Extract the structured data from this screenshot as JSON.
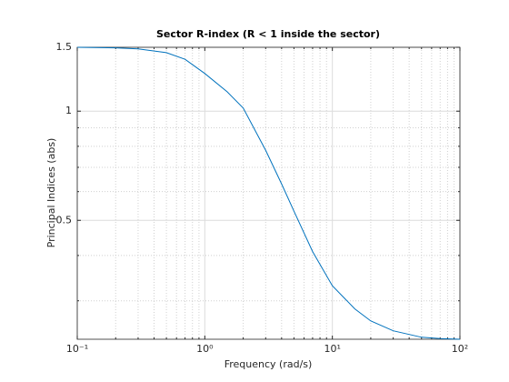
{
  "chart_data": {
    "type": "line",
    "title": "Sector R-index (R < 1 inside the sector)",
    "xlabel": "Frequency (rad/s)",
    "ylabel": "Principal Indices (abs)",
    "x": [
      0.1,
      0.2,
      0.3,
      0.5,
      0.7,
      1,
      1.5,
      2,
      3,
      4,
      5,
      7,
      10,
      15,
      20,
      30,
      50,
      70,
      100
    ],
    "series": [
      {
        "color": "#0072bd",
        "values": [
          1.5,
          1.495,
          1.485,
          1.45,
          1.39,
          1.27,
          1.13,
          1.02,
          0.78,
          0.63,
          0.53,
          0.41,
          0.33,
          0.285,
          0.264,
          0.248,
          0.238,
          0.236,
          0.235
        ]
      }
    ],
    "xscale": "log",
    "yscale": "log",
    "xlim": [
      0.1,
      100
    ],
    "ylim": [
      0.235,
      1.5
    ],
    "xticks": [
      {
        "value": 0.1,
        "label": "10⁻¹"
      },
      {
        "value": 1,
        "label": "10⁰"
      },
      {
        "value": 10,
        "label": "10¹"
      },
      {
        "value": 100,
        "label": "10²"
      }
    ],
    "yticks": [
      0.5,
      1,
      1.5
    ],
    "grid": true,
    "minor_grid": true
  }
}
